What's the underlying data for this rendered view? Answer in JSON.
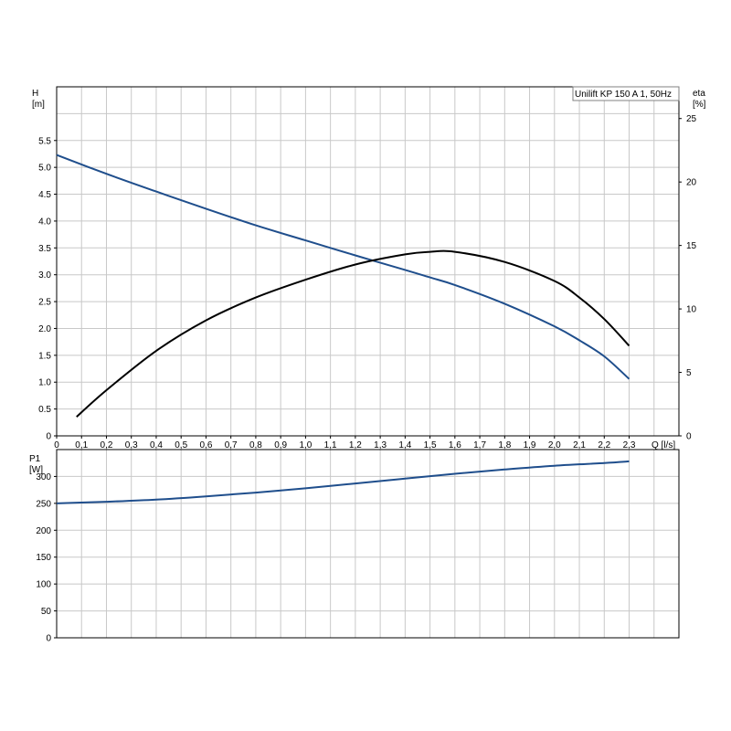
{
  "chart_data": [
    {
      "type": "line",
      "title": "Unilift KP 150 A 1, 50Hz",
      "xlabel": "Q [l/s]",
      "ylabel": "H [m]",
      "y2label": "eta [%]",
      "xlim": [
        0,
        2.5
      ],
      "ylim": [
        0,
        6.5
      ],
      "y2lim": [
        0,
        27.5
      ],
      "grid": true,
      "xticks": [
        "0",
        "0,1",
        "0,2",
        "0,3",
        "0,4",
        "0,5",
        "0,6",
        "0,7",
        "0,8",
        "0,9",
        "1,0",
        "1,1",
        "1,2",
        "1,3",
        "1,4",
        "1,5",
        "1,6",
        "1,7",
        "1,8",
        "1,9",
        "2,0",
        "2,1",
        "2,2",
        "2,3"
      ],
      "yticks": [
        "0",
        "0.5",
        "1.0",
        "1.5",
        "2.0",
        "2.5",
        "3.0",
        "3.5",
        "4.0",
        "4.5",
        "5.0",
        "5.5"
      ],
      "y2ticks": [
        "0",
        "5",
        "10",
        "15",
        "20",
        "25"
      ],
      "series": [
        {
          "name": "H",
          "axis": "left",
          "color": "#1f4e8c",
          "x": [
            0,
            0.2,
            0.4,
            0.6,
            0.8,
            1.0,
            1.2,
            1.4,
            1.5,
            1.6,
            1.8,
            2.0,
            2.1,
            2.2,
            2.3
          ],
          "y": [
            5.23,
            4.88,
            4.55,
            4.23,
            3.92,
            3.64,
            3.36,
            3.09,
            2.95,
            2.81,
            2.46,
            2.04,
            1.78,
            1.48,
            1.06
          ]
        },
        {
          "name": "eta",
          "axis": "right",
          "color": "#000000",
          "x": [
            0.08,
            0.2,
            0.4,
            0.6,
            0.8,
            1.0,
            1.2,
            1.4,
            1.5,
            1.6,
            1.8,
            2.0,
            2.1,
            2.2,
            2.3
          ],
          "y": [
            1.5,
            3.6,
            6.7,
            9.1,
            10.9,
            12.3,
            13.5,
            14.3,
            14.5,
            14.5,
            13.7,
            12.2,
            10.9,
            9.2,
            7.1
          ]
        }
      ]
    },
    {
      "type": "line",
      "xlabel": "",
      "ylabel": "P1 [W]",
      "xlim": [
        0,
        2.5
      ],
      "ylim": [
        0,
        350
      ],
      "grid": true,
      "yticks": [
        "0",
        "50",
        "100",
        "150",
        "200",
        "250",
        "300"
      ],
      "series": [
        {
          "name": "P1",
          "color": "#1f4e8c",
          "x": [
            0,
            0.2,
            0.4,
            0.6,
            0.8,
            1.0,
            1.2,
            1.4,
            1.6,
            1.8,
            2.0,
            2.2,
            2.3
          ],
          "y": [
            250,
            253,
            257,
            263,
            270,
            278,
            287,
            296,
            305,
            313,
            320,
            325,
            328
          ]
        }
      ]
    }
  ]
}
